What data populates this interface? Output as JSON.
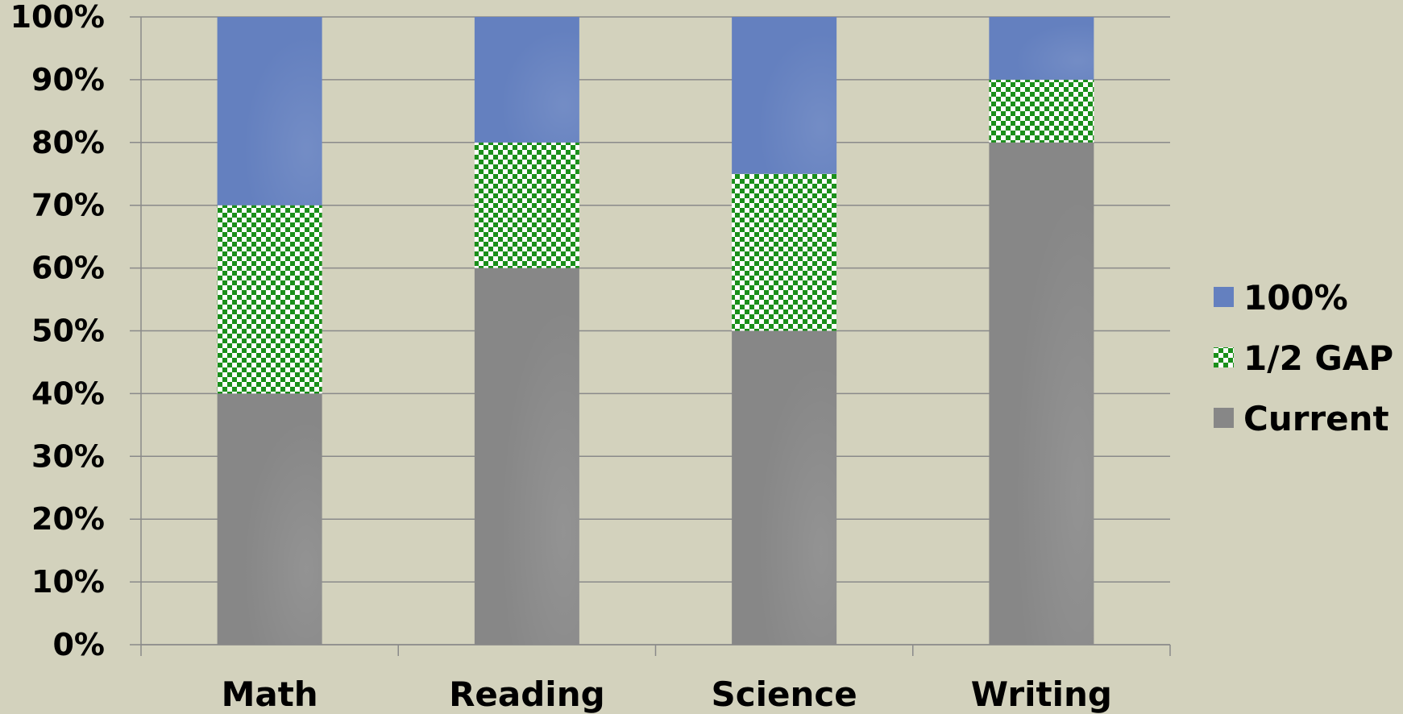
{
  "chart_data": {
    "type": "bar",
    "stacked": true,
    "categories": [
      "Math",
      "Reading",
      "Science",
      "Writing"
    ],
    "series": [
      {
        "name": "Current",
        "values": [
          40,
          60,
          50,
          80
        ],
        "color": "#878787",
        "pattern": "solid"
      },
      {
        "name": "1/2 GAP",
        "values": [
          30,
          20,
          25,
          10
        ],
        "color": "#1a8f1a",
        "pattern": "checkerboard"
      },
      {
        "name": "100%",
        "values": [
          30,
          20,
          25,
          10
        ],
        "color": "#6480bf",
        "pattern": "solid"
      }
    ],
    "legend_order": [
      "100%",
      "1/2 GAP",
      "Current"
    ],
    "y_ticks": [
      "0%",
      "10%",
      "20%",
      "30%",
      "40%",
      "50%",
      "60%",
      "70%",
      "80%",
      "90%",
      "100%"
    ],
    "ylim": [
      0,
      100
    ],
    "grid": true,
    "legend_position": "right",
    "title": "",
    "xlabel": "",
    "ylabel": ""
  }
}
